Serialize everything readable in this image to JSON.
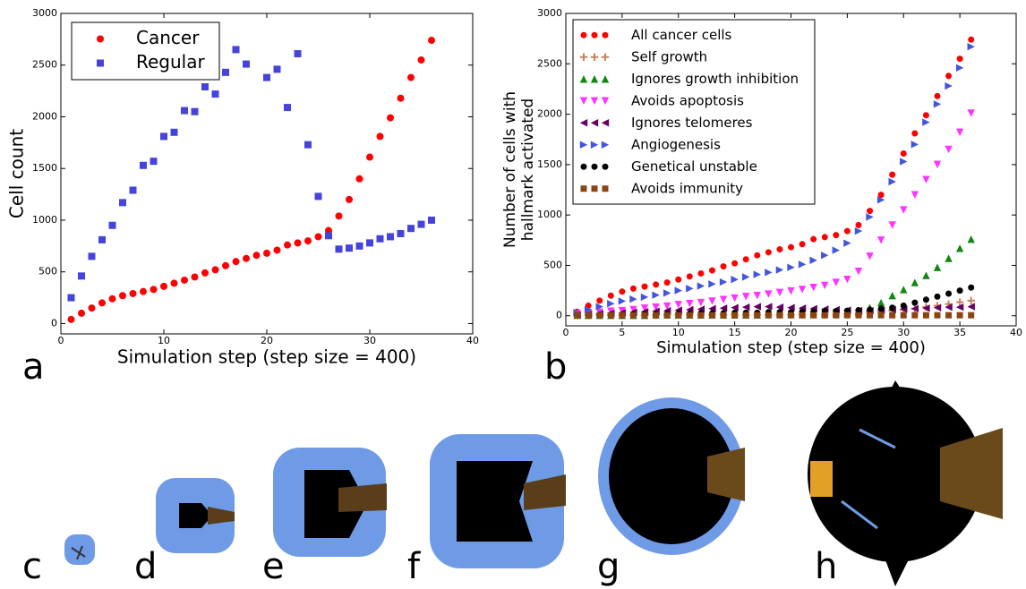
{
  "chart_data": [
    {
      "type": "scatter",
      "xlabel": "Simulation step (step size = 400)",
      "ylabel": [
        "Cell count"
      ],
      "x": [
        1,
        2,
        3,
        4,
        5,
        6,
        7,
        8,
        9,
        10,
        11,
        12,
        13,
        14,
        15,
        16,
        17,
        18,
        19,
        20,
        21,
        22,
        23,
        24,
        25,
        26,
        27,
        28,
        29,
        30,
        31,
        32,
        33,
        34,
        35,
        36
      ],
      "xlim": [
        0,
        40
      ],
      "xticks": [
        0,
        10,
        20,
        30,
        40
      ],
      "ylim": [
        -100,
        3000
      ],
      "yticks": [
        0,
        500,
        1000,
        1500,
        2000,
        2500,
        3000
      ],
      "legend": "upper left",
      "series": [
        {
          "name": "Cancer",
          "color": "#ff0000",
          "marker": "circle",
          "values": [
            40,
            100,
            150,
            200,
            240,
            270,
            290,
            310,
            330,
            360,
            390,
            420,
            450,
            490,
            520,
            560,
            600,
            630,
            660,
            680,
            710,
            760,
            780,
            800,
            840,
            900,
            1040,
            1200,
            1400,
            1610,
            1810,
            1990,
            2180,
            2380,
            2550,
            2740
          ]
        },
        {
          "name": "Regular",
          "color": "#4444dd",
          "marker": "square",
          "values": [
            250,
            460,
            650,
            810,
            950,
            1170,
            1290,
            1530,
            1570,
            1810,
            1850,
            2060,
            2050,
            2290,
            2220,
            2430,
            2650,
            2510,
            null,
            2380,
            2460,
            2090,
            2610,
            1730,
            1230,
            850,
            720,
            730,
            750,
            780,
            820,
            840,
            870,
            920,
            960,
            1000
          ]
        }
      ]
    },
    {
      "type": "scatter",
      "xlabel": "Simulation step (step size = 400)",
      "ylabel": [
        "Number of cells with",
        "hallmark activated"
      ],
      "x": [
        1,
        2,
        3,
        4,
        5,
        6,
        7,
        8,
        9,
        10,
        11,
        12,
        13,
        14,
        15,
        16,
        17,
        18,
        19,
        20,
        21,
        22,
        23,
        24,
        25,
        26,
        27,
        28,
        29,
        30,
        31,
        32,
        33,
        34,
        35,
        36
      ],
      "xlim": [
        0,
        40
      ],
      "xticks": [
        0,
        5,
        10,
        15,
        20,
        25,
        30,
        35,
        40
      ],
      "ylim": [
        -100,
        3000
      ],
      "yticks": [
        0,
        500,
        1000,
        1500,
        2000,
        2500,
        3000
      ],
      "legend": "upper left",
      "series": [
        {
          "name": "All cancer cells",
          "color": "#ff0000",
          "marker": "circle",
          "values": [
            40,
            100,
            150,
            200,
            240,
            270,
            290,
            310,
            330,
            360,
            390,
            420,
            450,
            490,
            520,
            560,
            600,
            630,
            660,
            680,
            710,
            760,
            780,
            800,
            840,
            900,
            1040,
            1200,
            1400,
            1610,
            1810,
            1990,
            2180,
            2380,
            2550,
            2740
          ]
        },
        {
          "name": "Self growth",
          "color": "#c8845a",
          "marker": "plus",
          "values": [
            5,
            5,
            5,
            5,
            5,
            5,
            5,
            5,
            10,
            10,
            10,
            10,
            10,
            10,
            10,
            10,
            10,
            10,
            10,
            10,
            10,
            10,
            10,
            10,
            15,
            20,
            30,
            40,
            50,
            60,
            70,
            85,
            100,
            115,
            135,
            150
          ]
        },
        {
          "name": "Ignores growth inhibition",
          "color": "#118811",
          "marker": "triangle",
          "values": [
            5,
            5,
            5,
            5,
            5,
            5,
            5,
            10,
            10,
            10,
            10,
            10,
            10,
            10,
            10,
            10,
            10,
            15,
            15,
            15,
            15,
            15,
            20,
            20,
            25,
            40,
            80,
            130,
            200,
            260,
            330,
            400,
            480,
            570,
            670,
            760
          ]
        },
        {
          "name": "Avoids apoptosis",
          "color": "#ff33ff",
          "marker": "triangle-down",
          "values": [
            20,
            30,
            35,
            45,
            50,
            60,
            75,
            85,
            95,
            110,
            120,
            130,
            145,
            160,
            175,
            190,
            200,
            215,
            230,
            245,
            260,
            280,
            300,
            330,
            360,
            440,
            590,
            750,
            900,
            1050,
            1200,
            1350,
            1500,
            1650,
            1820,
            2010
          ]
        },
        {
          "name": "Ignores telomeres",
          "color": "#660066",
          "marker": "triangle-left",
          "values": [
            10,
            15,
            20,
            25,
            30,
            35,
            40,
            45,
            50,
            55,
            60,
            65,
            70,
            75,
            80,
            85,
            90,
            90,
            85,
            80,
            75,
            70,
            65,
            60,
            55,
            50,
            50,
            55,
            60,
            65,
            70,
            75,
            80,
            85,
            85,
            90
          ]
        },
        {
          "name": "Angiogenesis",
          "color": "#4455dd",
          "marker": "triangle-right",
          "values": [
            30,
            60,
            90,
            120,
            145,
            165,
            185,
            205,
            225,
            250,
            270,
            295,
            315,
            335,
            360,
            385,
            410,
            430,
            455,
            480,
            510,
            550,
            600,
            650,
            720,
            840,
            980,
            1150,
            1330,
            1530,
            1700,
            1920,
            2100,
            2280,
            2460,
            2670
          ]
        },
        {
          "name": "Genetical unstable",
          "color": "#000000",
          "marker": "circle",
          "values": [
            5,
            5,
            10,
            10,
            10,
            15,
            15,
            15,
            20,
            20,
            20,
            25,
            25,
            25,
            30,
            30,
            30,
            35,
            35,
            35,
            40,
            40,
            45,
            45,
            50,
            55,
            60,
            70,
            80,
            100,
            130,
            160,
            190,
            220,
            250,
            280
          ]
        },
        {
          "name": "Avoids immunity",
          "color": "#8b4513",
          "marker": "square",
          "values": [
            5,
            5,
            5,
            5,
            5,
            5,
            5,
            5,
            5,
            5,
            5,
            5,
            5,
            5,
            5,
            5,
            5,
            5,
            5,
            5,
            5,
            5,
            5,
            5,
            5,
            5,
            5,
            5,
            5,
            5,
            5,
            5,
            5,
            5,
            5,
            5
          ]
        }
      ]
    }
  ],
  "panel_labels": [
    "a",
    "b",
    "c",
    "d",
    "e",
    "f",
    "g",
    "h"
  ]
}
